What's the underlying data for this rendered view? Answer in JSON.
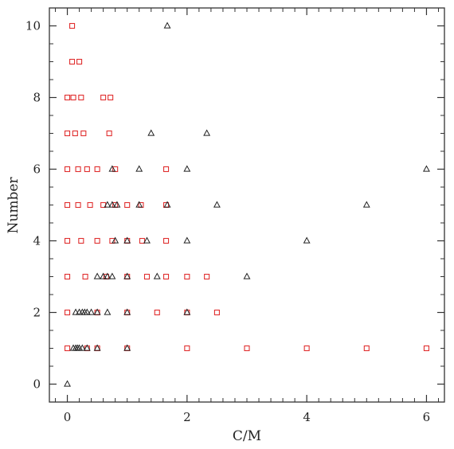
{
  "chart_data": {
    "type": "scatter",
    "xlabel": "C/M",
    "ylabel": "Number",
    "xlim": [
      -0.3,
      6.3
    ],
    "ylim": [
      -0.5,
      10.5
    ],
    "xticks": [
      0,
      2,
      4,
      6
    ],
    "xtick_labels": [
      "0",
      "2",
      "4",
      "6"
    ],
    "yticks": [
      0,
      2,
      4,
      6,
      8,
      10
    ],
    "ytick_labels": [
      "0",
      "2",
      "4",
      "6",
      "8",
      "10"
    ],
    "grid": false,
    "series": [
      {
        "marker": "square",
        "color": "#e03030",
        "points": [
          [
            0.08,
            10
          ],
          [
            0.08,
            9
          ],
          [
            0.2,
            9
          ],
          [
            0,
            8
          ],
          [
            0.1,
            8
          ],
          [
            0.23,
            8
          ],
          [
            0.6,
            8
          ],
          [
            0.72,
            8
          ],
          [
            0,
            7
          ],
          [
            0.13,
            7
          ],
          [
            0.27,
            7
          ],
          [
            0.7,
            7
          ],
          [
            0,
            6
          ],
          [
            0.18,
            6
          ],
          [
            0.33,
            6
          ],
          [
            0.5,
            6
          ],
          [
            0.8,
            6
          ],
          [
            1.65,
            6
          ],
          [
            0,
            5
          ],
          [
            0.18,
            5
          ],
          [
            0.38,
            5
          ],
          [
            0.6,
            5
          ],
          [
            0.8,
            5
          ],
          [
            1,
            5
          ],
          [
            1.23,
            5
          ],
          [
            1.65,
            5
          ],
          [
            0,
            4
          ],
          [
            0.23,
            4
          ],
          [
            0.5,
            4
          ],
          [
            0.75,
            4
          ],
          [
            1,
            4
          ],
          [
            1.25,
            4
          ],
          [
            1.65,
            4
          ],
          [
            0,
            3
          ],
          [
            0.3,
            3
          ],
          [
            0.65,
            3
          ],
          [
            1,
            3
          ],
          [
            1.33,
            3
          ],
          [
            1.65,
            3
          ],
          [
            2,
            3
          ],
          [
            2.33,
            3
          ],
          [
            0,
            2
          ],
          [
            0.5,
            2
          ],
          [
            1,
            2
          ],
          [
            1.5,
            2
          ],
          [
            2,
            2
          ],
          [
            2.5,
            2
          ],
          [
            0,
            1
          ],
          [
            0.33,
            1
          ],
          [
            0.5,
            1
          ],
          [
            1,
            1
          ],
          [
            2,
            1
          ],
          [
            3,
            1
          ],
          [
            4,
            1
          ],
          [
            5,
            1
          ],
          [
            6,
            1
          ]
        ]
      },
      {
        "marker": "triangle",
        "color": "#222222",
        "points": [
          [
            0,
            0
          ],
          [
            0.1,
            1
          ],
          [
            0.14,
            1
          ],
          [
            0.17,
            1
          ],
          [
            0.2,
            1
          ],
          [
            0.25,
            1
          ],
          [
            0.33,
            1
          ],
          [
            0.5,
            1
          ],
          [
            1,
            1
          ],
          [
            0.14,
            2
          ],
          [
            0.2,
            2
          ],
          [
            0.25,
            2
          ],
          [
            0.29,
            2
          ],
          [
            0.33,
            2
          ],
          [
            0.4,
            2
          ],
          [
            0.5,
            2
          ],
          [
            0.67,
            2
          ],
          [
            1,
            2
          ],
          [
            2,
            2
          ],
          [
            0.5,
            3
          ],
          [
            0.6,
            3
          ],
          [
            0.67,
            3
          ],
          [
            0.75,
            3
          ],
          [
            1,
            3
          ],
          [
            1.5,
            3
          ],
          [
            3,
            3
          ],
          [
            0.8,
            4
          ],
          [
            1,
            4
          ],
          [
            1.33,
            4
          ],
          [
            2,
            4
          ],
          [
            4,
            4
          ],
          [
            0.67,
            5
          ],
          [
            0.75,
            5
          ],
          [
            0.83,
            5
          ],
          [
            1.2,
            5
          ],
          [
            1.67,
            5
          ],
          [
            2.5,
            5
          ],
          [
            5,
            5
          ],
          [
            0.75,
            6
          ],
          [
            1.2,
            6
          ],
          [
            2,
            6
          ],
          [
            6,
            6
          ],
          [
            1.4,
            7
          ],
          [
            2.33,
            7
          ],
          [
            1.67,
            10
          ]
        ]
      }
    ]
  }
}
